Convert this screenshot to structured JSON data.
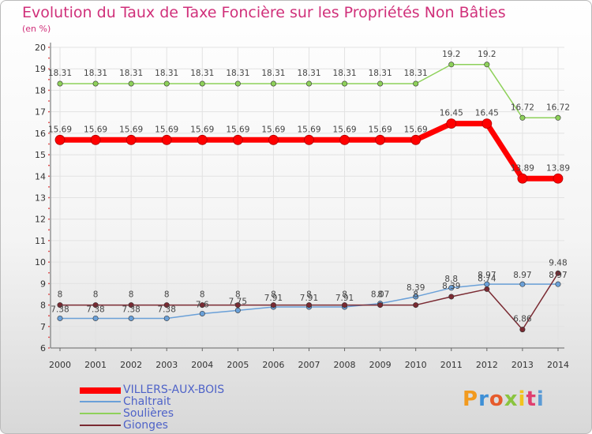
{
  "title": "Evolution du Taux de Taxe Foncière sur les Propriétés Non Bâties",
  "subtitle": "(en %)",
  "logo": "Proxiti",
  "chart_data": {
    "type": "line",
    "title": "Evolution du Taux de Taxe Foncière sur les Propriétés Non Bâties",
    "ylabel": "(en %)",
    "x": [
      "2000",
      "2001",
      "2002",
      "2003",
      "2004",
      "2005",
      "2006",
      "2007",
      "2008",
      "2009",
      "2010",
      "2011",
      "2012",
      "2013",
      "2014"
    ],
    "ylim": [
      6,
      20
    ],
    "yticks": [
      6,
      7,
      8,
      9,
      10,
      11,
      12,
      13,
      14,
      15,
      16,
      17,
      18,
      19,
      20
    ],
    "grid": true,
    "legend_position": "bottom-left",
    "series": [
      {
        "name": "VILLERS-AUX-BOIS",
        "color": "#ff0000",
        "values": [
          15.69,
          15.69,
          15.69,
          15.69,
          15.69,
          15.69,
          15.69,
          15.69,
          15.69,
          15.69,
          15.69,
          16.45,
          16.45,
          13.89,
          13.89
        ],
        "labels": [
          "15.69",
          "15.69",
          "15.69",
          "15.69",
          "15.69",
          "15.69",
          "15.69",
          "15.69",
          "15.69",
          "15.69",
          "15.69",
          "16.45",
          "16.45",
          "13.89",
          "13.89"
        ]
      },
      {
        "name": "Chaltrait",
        "color": "#6aa0d8",
        "values": [
          7.38,
          7.38,
          7.38,
          7.38,
          7.6,
          7.75,
          7.91,
          7.91,
          7.91,
          8.07,
          8.39,
          8.8,
          8.97,
          8.97,
          8.97
        ],
        "labels": [
          "7.38",
          "7.38",
          "7.38",
          "7.38",
          "7.6",
          "7.75",
          "7.91",
          "7.91",
          "7.91",
          "8.07",
          "8.39",
          "8.8",
          "8.97",
          "8.97",
          "8.97"
        ]
      },
      {
        "name": "Soulières",
        "color": "#8ed15a",
        "values": [
          18.31,
          18.31,
          18.31,
          18.31,
          18.31,
          18.31,
          18.31,
          18.31,
          18.31,
          18.31,
          18.31,
          19.2,
          19.2,
          16.72,
          16.72
        ],
        "labels": [
          "18.31",
          "18.31",
          "18.31",
          "18.31",
          "18.31",
          "18.31",
          "18.31",
          "18.31",
          "18.31",
          "18.31",
          "18.31",
          "19.2",
          "19.2",
          "16.72",
          "16.72"
        ]
      },
      {
        "name": "Gionges",
        "color": "#7a2a32",
        "values": [
          8,
          8,
          8,
          8,
          8,
          8,
          8,
          8,
          8,
          8,
          8,
          8.39,
          8.74,
          6.86,
          9.48
        ],
        "labels": [
          "8",
          "8",
          "8",
          "8",
          "8",
          "8",
          "8",
          "8",
          "8",
          "8",
          "8",
          "8.39",
          "8.74",
          "6.86",
          "9.48"
        ]
      }
    ]
  }
}
